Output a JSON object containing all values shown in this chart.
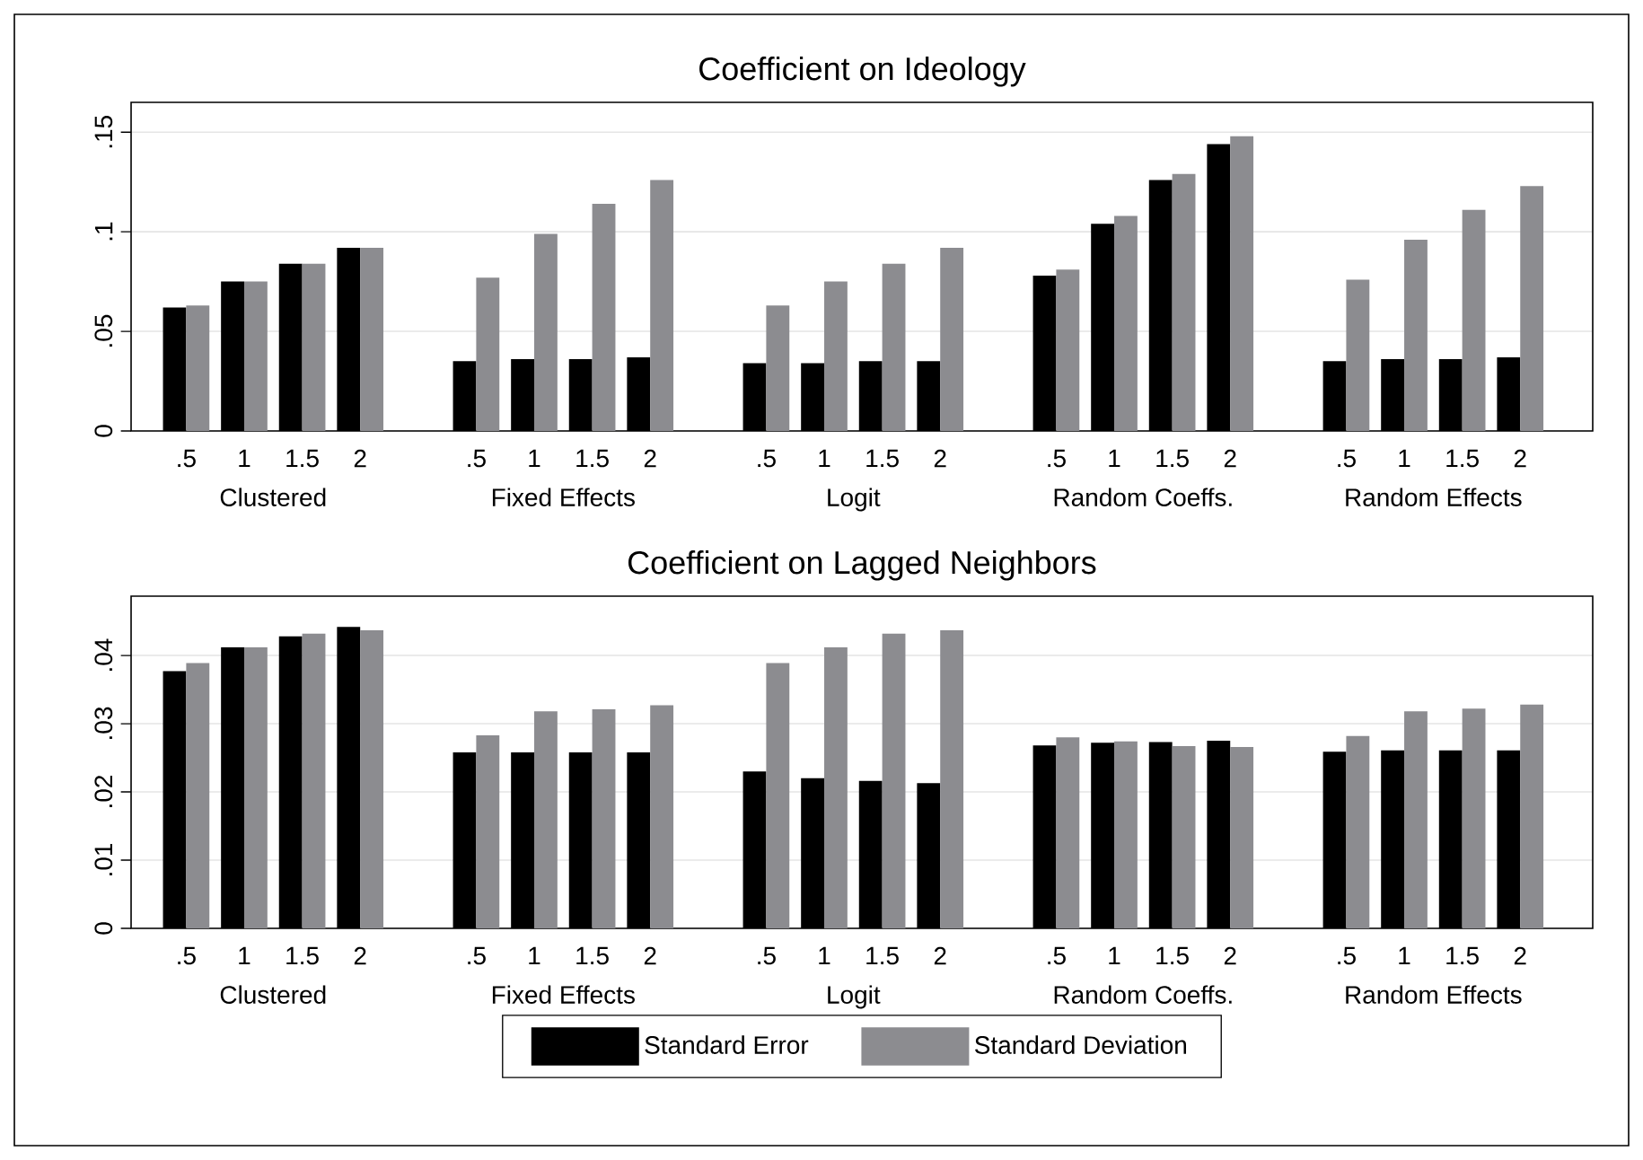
{
  "chart_data": [
    {
      "type": "bar",
      "title": "Coefficient on Ideology",
      "categories": [
        ".5",
        "1",
        "1.5",
        "2",
        ".5",
        "1",
        "1.5",
        "2",
        ".5",
        "1",
        "1.5",
        "2",
        ".5",
        "1",
        "1.5",
        "2",
        ".5",
        "1",
        "1.5",
        "2"
      ],
      "annotations": [
        "Clustered",
        "Fixed Effects",
        "Logit",
        "Random Coeffs.",
        "Random Effects"
      ],
      "series": [
        {
          "color": "#000000",
          "values": [
            0.062,
            0.075,
            0.084,
            0.092,
            0.035,
            0.036,
            0.036,
            0.037,
            0.034,
            0.034,
            0.035,
            0.035,
            0.078,
            0.104,
            0.126,
            0.144,
            0.035,
            0.036,
            0.036,
            0.037
          ]
        },
        {
          "color": "#8c8c90",
          "values": [
            0.063,
            0.075,
            0.084,
            0.092,
            0.077,
            0.099,
            0.114,
            0.126,
            0.063,
            0.075,
            0.084,
            0.092,
            0.081,
            0.108,
            0.129,
            0.148,
            0.076,
            0.096,
            0.111,
            0.123
          ]
        }
      ],
      "ylim": [
        0,
        0.165
      ],
      "yticks": [
        0,
        {
          "value": 0.05,
          "label": ".05"
        },
        {
          "value": 0.1,
          "label": ".1"
        },
        {
          "value": 0.15,
          "label": ".15"
        }
      ],
      "grid": "y",
      "legend": false
    },
    {
      "type": "bar",
      "title": "Coefficient on Lagged Neighbors",
      "categories": [
        ".5",
        "1",
        "1.5",
        "2",
        ".5",
        "1",
        "1.5",
        "2",
        ".5",
        "1",
        "1.5",
        "2",
        ".5",
        "1",
        "1.5",
        "2",
        ".5",
        "1",
        "1.5",
        "2"
      ],
      "annotations": [
        "Clustered",
        "Fixed Effects",
        "Logit",
        "Random Coeffs.",
        "Random Effects"
      ],
      "series": [
        {
          "name": "Standard Error",
          "color": "#000000",
          "values": [
            0.0377,
            0.0412,
            0.0428,
            0.0442,
            0.0258,
            0.0258,
            0.0258,
            0.0258,
            0.023,
            0.022,
            0.0216,
            0.0213,
            0.0268,
            0.0272,
            0.0273,
            0.0275,
            0.0259,
            0.0261,
            0.0261,
            0.0261
          ]
        },
        {
          "name": "Standard Deviation",
          "color": "#8c8c90",
          "values": [
            0.0389,
            0.0412,
            0.0432,
            0.0437,
            0.0283,
            0.0318,
            0.0321,
            0.0327,
            0.0389,
            0.0412,
            0.0432,
            0.0437,
            0.028,
            0.0274,
            0.0267,
            0.0266,
            0.0282,
            0.0318,
            0.0322,
            0.0328
          ]
        }
      ],
      "ylim": [
        0,
        0.0487
      ],
      "yticks": [
        0,
        {
          "value": 0.01,
          "label": ".01"
        },
        {
          "value": 0.02,
          "label": ".02"
        },
        {
          "value": 0.03,
          "label": ".03"
        },
        {
          "value": 0.04,
          "label": ".04"
        }
      ],
      "grid": "y",
      "legend": "bottom"
    }
  ]
}
